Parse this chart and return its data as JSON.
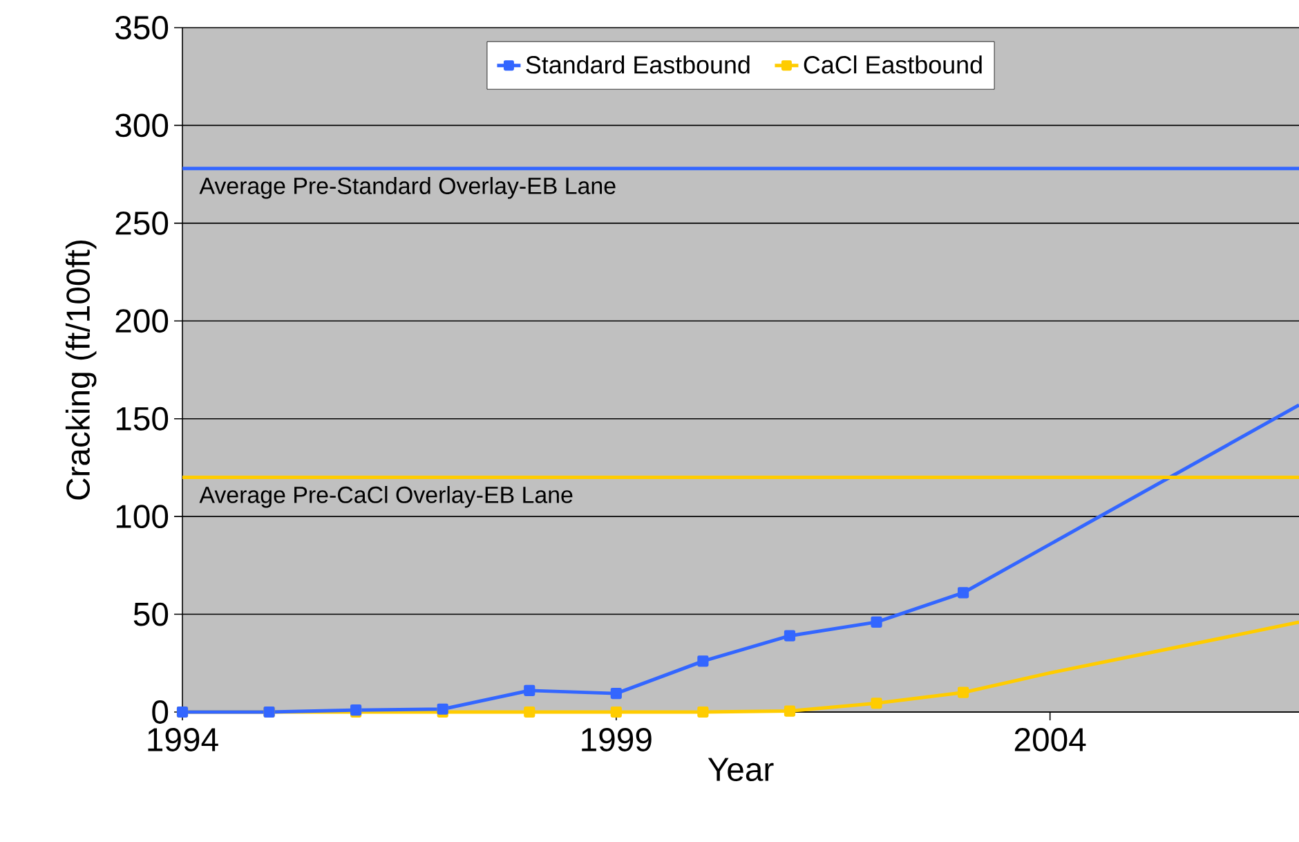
{
  "chart_data": {
    "type": "line",
    "xlabel": "Year",
    "ylabel": "Cracking (ft/100ft)",
    "xlim": [
      1994,
      2006.87
    ],
    "xticks": [
      1994,
      1999,
      2004
    ],
    "ylim": [
      0,
      350
    ],
    "yticks": [
      0,
      50,
      100,
      150,
      200,
      250,
      300,
      350
    ],
    "grid": "y",
    "legend": "top",
    "marker": "square",
    "line_style": "solid",
    "series": [
      {
        "name": "Standard Eastbound",
        "color": "#3366ff",
        "x": [
          1994,
          1995,
          1996,
          1997,
          1998,
          1999,
          2000,
          2001,
          2002,
          2003
        ],
        "values": [
          0,
          0,
          1,
          1.5,
          11,
          9.5,
          26,
          39,
          46,
          61
        ]
      },
      {
        "name": "CaCl Eastbound",
        "color": "#ffcc00",
        "x": [
          1994,
          1995,
          1996,
          1997,
          1998,
          1999,
          2000,
          2001,
          2002,
          2003
        ],
        "values": [
          0,
          0,
          0,
          0,
          0,
          0,
          0,
          0.5,
          4.5,
          10
        ]
      },
      {
        "color": "#3366ff",
        "marker": "none",
        "x": [
          2003,
          2006.87
        ],
        "values": [
          61,
          157
        ]
      },
      {
        "color": "#ffcc00",
        "marker": "none",
        "x": [
          2003,
          2004,
          2005,
          2006,
          2006.87
        ],
        "values": [
          10,
          20,
          29,
          38,
          46
        ]
      }
    ],
    "ref_lines": [
      {
        "axis": "y",
        "value": 278,
        "label": "Average Pre-Standard Overlay-EB Lane",
        "color": "#3366ff"
      },
      {
        "axis": "y",
        "value": 120,
        "label": "Average Pre-CaCl Overlay-EB Lane",
        "color": "#ffcc00"
      }
    ]
  }
}
